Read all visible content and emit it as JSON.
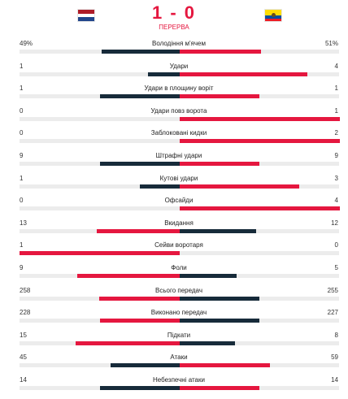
{
  "match": {
    "score": "1 - 0",
    "status": "ПЕРЕРВА",
    "home_flag": "netherlands-flag",
    "away_flag": "ecuador-flag"
  },
  "colors": {
    "home": "#172b3a",
    "accent": "#e5173f",
    "track": "#ececec"
  },
  "stats": [
    {
      "name": "Володіння м'ячем",
      "home": "49%",
      "away": "51%",
      "home_value": 49,
      "away_value": 51
    },
    {
      "name": "Удари",
      "home": "1",
      "away": "4",
      "home_value": 1,
      "away_value": 4
    },
    {
      "name": "Удари в площину воріт",
      "home": "1",
      "away": "1",
      "home_value": 1,
      "away_value": 1
    },
    {
      "name": "Удари повз ворота",
      "home": "0",
      "away": "1",
      "home_value": 0,
      "away_value": 1
    },
    {
      "name": "Заблоковані кидки",
      "home": "0",
      "away": "2",
      "home_value": 0,
      "away_value": 2
    },
    {
      "name": "Штрафні удари",
      "home": "9",
      "away": "9",
      "home_value": 9,
      "away_value": 9
    },
    {
      "name": "Кутові удари",
      "home": "1",
      "away": "3",
      "home_value": 1,
      "away_value": 3
    },
    {
      "name": "Офсайди",
      "home": "0",
      "away": "4",
      "home_value": 0,
      "away_value": 4
    },
    {
      "name": "Вкидання",
      "home": "13",
      "away": "12",
      "home_value": 13,
      "away_value": 12
    },
    {
      "name": "Сейви воротаря",
      "home": "1",
      "away": "0",
      "home_value": 1,
      "away_value": 0
    },
    {
      "name": "Фоли",
      "home": "9",
      "away": "5",
      "home_value": 9,
      "away_value": 5
    },
    {
      "name": "Всього передач",
      "home": "258",
      "away": "255",
      "home_value": 258,
      "away_value": 255
    },
    {
      "name": "Виконано передач",
      "home": "228",
      "away": "227",
      "home_value": 228,
      "away_value": 227
    },
    {
      "name": "Підкати",
      "home": "15",
      "away": "8",
      "home_value": 15,
      "away_value": 8
    },
    {
      "name": "Атаки",
      "home": "45",
      "away": "59",
      "home_value": 45,
      "away_value": 59
    },
    {
      "name": "Небезпечні атаки",
      "home": "14",
      "away": "14",
      "home_value": 14,
      "away_value": 14
    }
  ]
}
